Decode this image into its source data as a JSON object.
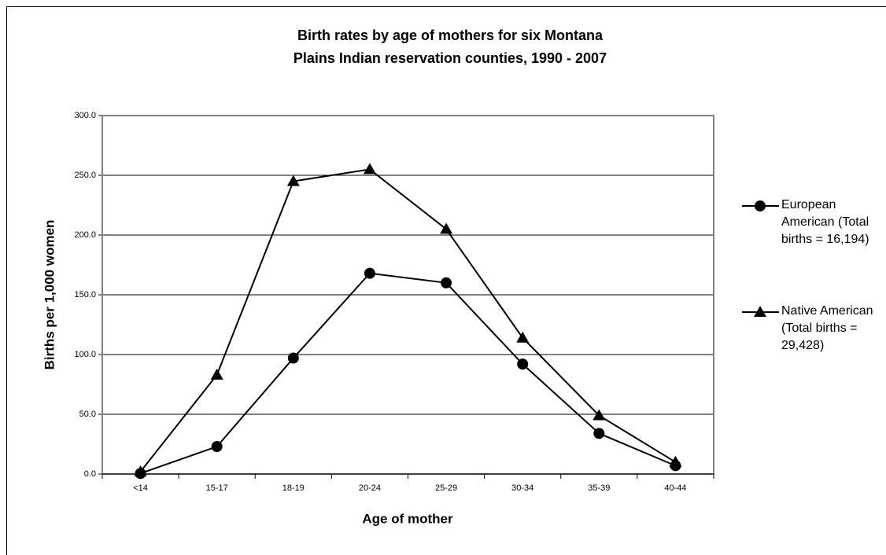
{
  "chart_data": {
    "type": "line",
    "title": [
      "Birth rates by age of mothers for six Montana",
      "Plains Indian reservation counties, 1990 - 2007"
    ],
    "x_label": "Age of mother",
    "y_label": "Births per 1,000 women",
    "categories": [
      "<14",
      "15-17",
      "18-19",
      "20-24",
      "25-29",
      "30-34",
      "35-39",
      "40-44"
    ],
    "series": [
      {
        "name": "European American (Total births = 16,194)",
        "color": "#000000",
        "marker": "circle",
        "values": [
          0.5,
          23,
          97,
          168,
          160,
          92,
          34,
          7
        ]
      },
      {
        "name": "Native American (Total births = 29,428)",
        "color": "#000000",
        "marker": "triangle",
        "values": [
          2,
          83,
          245,
          255,
          205,
          114,
          49,
          10
        ]
      }
    ],
    "ylim": [
      0,
      300
    ],
    "yticks": [
      {
        "value": 0,
        "label": "0.0"
      },
      {
        "value": 50,
        "label": "50.0"
      },
      {
        "value": 100,
        "label": "100.0"
      },
      {
        "value": 150,
        "label": "150.0"
      },
      {
        "value": 200,
        "label": "200.0"
      },
      {
        "value": 250,
        "label": "250.0"
      },
      {
        "value": 300,
        "label": "300.0"
      }
    ],
    "grid": true,
    "legend": "right"
  }
}
